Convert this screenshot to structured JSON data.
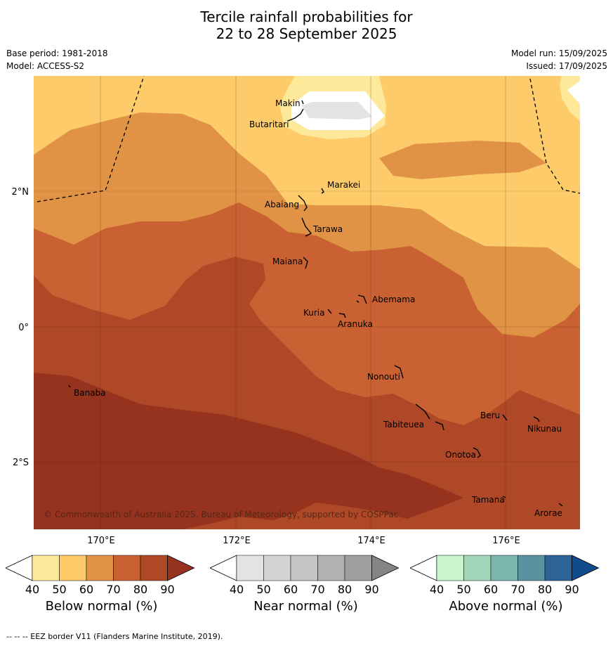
{
  "header": {
    "title_line1": "Tercile rainfall probabilities for",
    "title_line2": "22 to 28 September 2025",
    "base_period": "Base period: 1981-2018",
    "model": "Model: ACCESS-S2",
    "model_run": "Model run: 15/09/2025",
    "issued": "Issued: 17/09/2025"
  },
  "map": {
    "lat_labels": [
      "2°N",
      "0°",
      "2°S"
    ],
    "lon_labels": [
      "170°E",
      "172°E",
      "174°E",
      "176°E"
    ],
    "places": [
      "Makin",
      "Butaritari",
      "Marakei",
      "Abaiang",
      "Tarawa",
      "Maiana",
      "Abemama",
      "Kuria",
      "Aranuka",
      "Nonouti",
      "Banaba",
      "Tabiteuea",
      "Beru",
      "Nikunau",
      "Onotoa",
      "Tamana",
      "Arorae"
    ],
    "copyright": "© Commonwealth of Australia 2025, Bureau of Meteorology, supported by COSPPac",
    "colors": {
      "below_40_50": "#fee99a",
      "below_50_60": "#fdcb69",
      "below_60_70": "#e09345",
      "below_70_80": "#c96132",
      "below_80_90": "#ae4827",
      "below_90_plus": "#95331e",
      "near_40_50": "#e3e3e3"
    }
  },
  "colorbars": [
    {
      "label": "Below normal (%)",
      "ticks": [
        "40",
        "50",
        "60",
        "70",
        "80",
        "90"
      ],
      "colors": [
        "#ffffff",
        "#fee99a",
        "#fdcb69",
        "#e09345",
        "#c96132",
        "#ae4827",
        "#95331e"
      ]
    },
    {
      "label": "Near normal (%)",
      "ticks": [
        "40",
        "50",
        "60",
        "70",
        "80",
        "90"
      ],
      "colors": [
        "#ffffff",
        "#e3e3e3",
        "#d4d4d4",
        "#c4c4c4",
        "#b1b1b1",
        "#9e9e9e",
        "#858585"
      ]
    },
    {
      "label": "Above normal (%)",
      "ticks": [
        "40",
        "50",
        "60",
        "70",
        "80",
        "90"
      ],
      "colors": [
        "#ffffff",
        "#c8f5cd",
        "#a1d6b8",
        "#7cb4ae",
        "#5b91a1",
        "#2e6396",
        "#0e4a8c"
      ]
    }
  ],
  "footnote": "--  --  -- EEZ border V11 (Flanders Marine Institute, 2019)."
}
